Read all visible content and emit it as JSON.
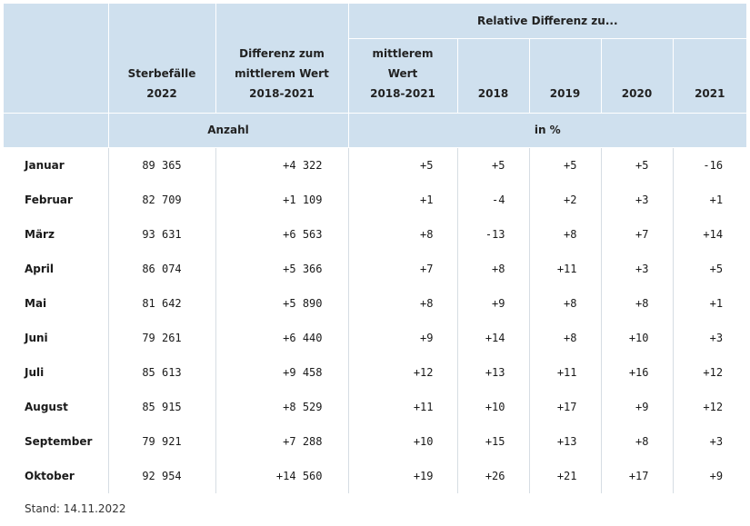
{
  "header": {
    "col_sterbefaelle": [
      "Sterbefälle",
      "2022"
    ],
    "col_differenz": [
      "Differenz zum",
      "mittlerem Wert",
      "2018-2021"
    ],
    "group_relative": "Relative Differenz zu...",
    "col_mittlerem": [
      "mittlerem",
      "Wert",
      "2018-2021"
    ],
    "years": [
      "2018",
      "2019",
      "2020",
      "2021"
    ],
    "unit_anzahl": "Anzahl",
    "unit_percent": "in %"
  },
  "rows": [
    {
      "month": "Januar",
      "count": "89 365",
      "diff": "+4 322",
      "rel_mean": "+5",
      "y2018": "+5",
      "y2019": "+5",
      "y2020": "+5",
      "y2021": "-16"
    },
    {
      "month": "Februar",
      "count": "82 709",
      "diff": "+1 109",
      "rel_mean": "+1",
      "y2018": "-4",
      "y2019": "+2",
      "y2020": "+3",
      "y2021": "+1"
    },
    {
      "month": "März",
      "count": "93 631",
      "diff": "+6 563",
      "rel_mean": "+8",
      "y2018": "-13",
      "y2019": "+8",
      "y2020": "+7",
      "y2021": "+14"
    },
    {
      "month": "April",
      "count": "86 074",
      "diff": "+5 366",
      "rel_mean": "+7",
      "y2018": "+8",
      "y2019": "+11",
      "y2020": "+3",
      "y2021": "+5"
    },
    {
      "month": "Mai",
      "count": "81 642",
      "diff": "+5 890",
      "rel_mean": "+8",
      "y2018": "+9",
      "y2019": "+8",
      "y2020": "+8",
      "y2021": "+1"
    },
    {
      "month": "Juni",
      "count": "79 261",
      "diff": "+6 440",
      "rel_mean": "+9",
      "y2018": "+14",
      "y2019": "+8",
      "y2020": "+10",
      "y2021": "+3"
    },
    {
      "month": "Juli",
      "count": "85 613",
      "diff": "+9 458",
      "rel_mean": "+12",
      "y2018": "+13",
      "y2019": "+11",
      "y2020": "+16",
      "y2021": "+12"
    },
    {
      "month": "August",
      "count": "85 915",
      "diff": "+8 529",
      "rel_mean": "+11",
      "y2018": "+10",
      "y2019": "+17",
      "y2020": "+9",
      "y2021": "+12"
    },
    {
      "month": "September",
      "count": "79 921",
      "diff": "+7 288",
      "rel_mean": "+10",
      "y2018": "+15",
      "y2019": "+13",
      "y2020": "+8",
      "y2021": "+3"
    },
    {
      "month": "Oktober",
      "count": "92 954",
      "diff": "+14 560",
      "rel_mean": "+19",
      "y2018": "+26",
      "y2019": "+21",
      "y2020": "+17",
      "y2021": "+9"
    }
  ],
  "footer": {
    "stand": "Stand: 14.11.2022"
  },
  "colors": {
    "header_bg": "#cfe0ee",
    "divider": "#d6dde3"
  }
}
